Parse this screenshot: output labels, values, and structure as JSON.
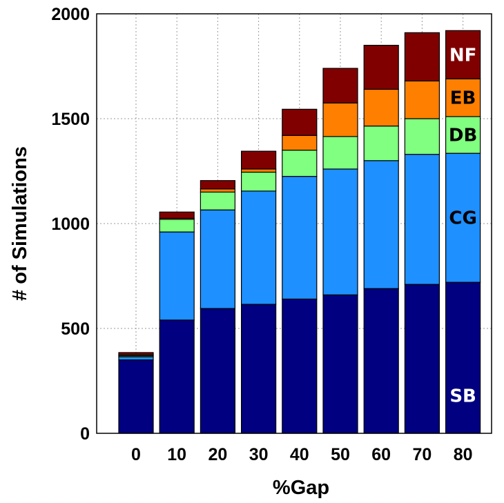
{
  "chart_data": {
    "type": "bar",
    "stacked": true,
    "xlabel": "%Gap",
    "ylabel": "# of Simulations",
    "categories": [
      "0",
      "10",
      "20",
      "30",
      "40",
      "50",
      "60",
      "70",
      "80"
    ],
    "ylim": [
      0,
      2000
    ],
    "yticks": [
      "0",
      "500",
      "1000",
      "1500",
      "2000"
    ],
    "grid": true,
    "legend": "inline labels on rightmost bar",
    "series": [
      {
        "name": "SB",
        "color": "#000080",
        "label_color": "#ffffff",
        "values": [
          350,
          540,
          595,
          615,
          640,
          660,
          690,
          710,
          720
        ]
      },
      {
        "name": "CG",
        "color": "#1e90ff",
        "label_color": "#000000",
        "values": [
          15,
          420,
          470,
          540,
          585,
          600,
          610,
          620,
          615
        ]
      },
      {
        "name": "DB",
        "color": "#80ff80",
        "label_color": "#000000",
        "values": [
          5,
          60,
          85,
          90,
          125,
          155,
          165,
          170,
          175
        ]
      },
      {
        "name": "EB",
        "color": "#ff7f00",
        "label_color": "#000000",
        "values": [
          5,
          5,
          15,
          15,
          70,
          160,
          175,
          180,
          180
        ]
      },
      {
        "name": "NF",
        "color": "#800000",
        "label_color": "#ffffff",
        "values": [
          10,
          30,
          40,
          85,
          125,
          165,
          210,
          230,
          230
        ]
      }
    ]
  }
}
